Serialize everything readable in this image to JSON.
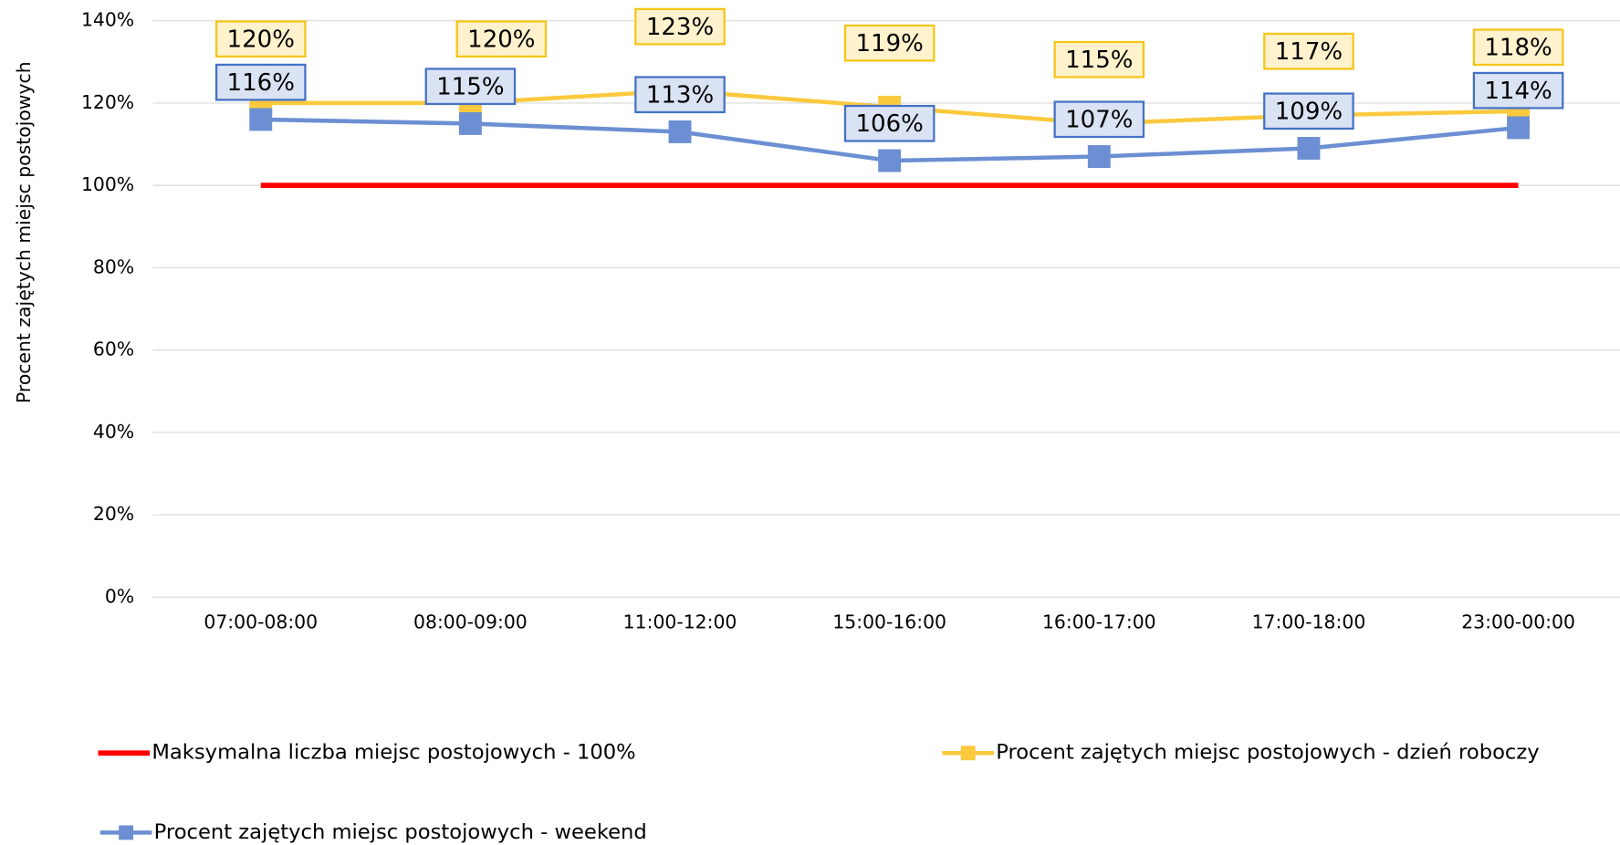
{
  "chart_data": {
    "type": "line",
    "y_label": "Procent zajętych miejsc postojowych",
    "categories": [
      "07:00-08:00",
      "08:00-09:00",
      "11:00-12:00",
      "15:00-16:00",
      "16:00-17:00",
      "17:00-18:00",
      "23:00-00:00"
    ],
    "series": [
      {
        "name": "Maksymalna liczba miejsc postojowych - 100%",
        "color": "#ff0000",
        "marker": "none",
        "values": [
          100,
          100,
          100,
          100,
          100,
          100,
          100
        ]
      },
      {
        "name": "Procent zajętych miejsc postojowych - dzień roboczy",
        "color": "#fbc93d",
        "marker": "square",
        "values": [
          120,
          120,
          123,
          119,
          115,
          117,
          118
        ],
        "value_labels": [
          "120%",
          "120%",
          "123%",
          "119%",
          "115%",
          "117%",
          "118%"
        ]
      },
      {
        "name": "Procent zajętych miejsc postojowych - weekend",
        "color": "#6b8fd2",
        "marker": "square",
        "values": [
          116,
          115,
          113,
          106,
          107,
          109,
          114
        ],
        "value_labels": [
          "116%",
          "115%",
          "113%",
          "106%",
          "107%",
          "109%",
          "114%"
        ]
      }
    ],
    "ylim": [
      0,
      140
    ],
    "yticks": [
      {
        "value": 0,
        "label": "0%"
      },
      {
        "value": 20,
        "label": "20%"
      },
      {
        "value": 40,
        "label": "40%"
      },
      {
        "value": 60,
        "label": "60%"
      },
      {
        "value": 80,
        "label": "80%"
      },
      {
        "value": 100,
        "label": "100%"
      },
      {
        "value": 120,
        "label": "120%"
      },
      {
        "value": 140,
        "label": "140%"
      }
    ],
    "grid": true,
    "legend": "bottom"
  }
}
